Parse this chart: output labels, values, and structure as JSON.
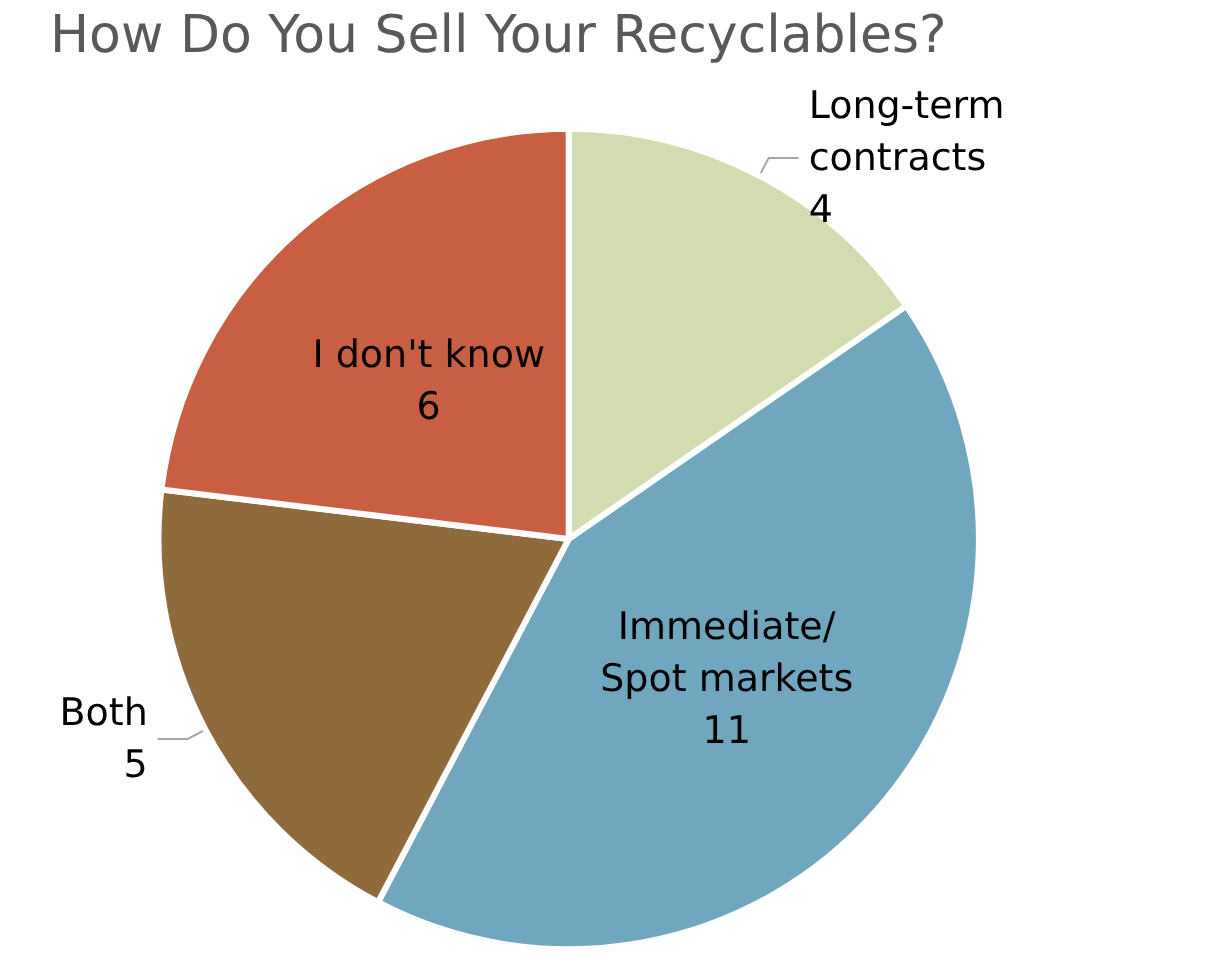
{
  "chart_data": {
    "type": "pie",
    "title": "How Do You Sell Your Recyclables?",
    "categories": [
      "Long-term contracts",
      "Immediate/Spot markets",
      "Both",
      "I don't know"
    ],
    "values": [
      4,
      11,
      5,
      6
    ],
    "colors": [
      "#d3dbb0",
      "#71a6bf",
      "#8f6b3b",
      "#c85f42"
    ],
    "data_labels": true,
    "legend": false
  }
}
